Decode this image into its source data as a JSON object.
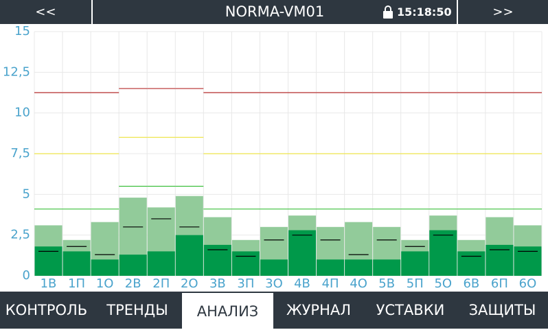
{
  "header": {
    "back": "<<",
    "title": "NORMA-VM01",
    "time": "15:18:50",
    "forward": ">>"
  },
  "tabs": [
    "КОНТРОЛЬ",
    "ТРЕНДЫ",
    "АНАЛИЗ",
    "ЖУРНАЛ",
    "УСТАВКИ",
    "ЗАЩИТЫ"
  ],
  "chart_data": {
    "type": "bar",
    "categories": [
      "1В",
      "1П",
      "1О",
      "2В",
      "2П",
      "2О",
      "3В",
      "3П",
      "3О",
      "4В",
      "4П",
      "4О",
      "5В",
      "5П",
      "5О",
      "6В",
      "6П",
      "6О"
    ],
    "series": [
      {
        "color": "#92cb9a",
        "values": [
          3.1,
          2.2,
          3.3,
          4.8,
          4.2,
          4.9,
          3.6,
          2.2,
          3.0,
          3.7,
          3.0,
          3.3,
          3.0,
          2.2,
          3.7,
          2.2,
          3.6,
          3.1
        ]
      },
      {
        "color": "#00994a",
        "values": [
          1.8,
          1.5,
          1.0,
          1.3,
          1.5,
          2.5,
          1.9,
          1.5,
          1.0,
          2.8,
          1.0,
          1.0,
          1.0,
          1.5,
          2.8,
          1.5,
          1.9,
          1.8
        ]
      }
    ],
    "lines": [
      {
        "color": "#000000",
        "values": [
          1.5,
          1.8,
          1.3,
          3.0,
          3.5,
          3.0,
          1.6,
          1.2,
          2.2,
          2.5,
          2.2,
          1.3,
          2.2,
          1.8,
          2.5,
          1.2,
          1.6,
          1.5
        ]
      },
      {
        "color": "#b52a2a",
        "values": [
          11.25,
          11.25,
          11.25,
          11.5,
          11.5,
          11.5,
          11.25,
          11.25,
          11.25,
          11.25,
          11.25,
          11.25,
          11.25,
          11.25,
          11.25,
          11.25,
          11.25,
          11.25
        ]
      },
      {
        "color": "#eee44a",
        "values": [
          7.5,
          7.5,
          7.5,
          8.5,
          8.5,
          8.5,
          7.5,
          7.5,
          7.5,
          7.5,
          7.5,
          7.5,
          7.5,
          7.5,
          7.5,
          7.5,
          7.5,
          7.5
        ]
      },
      {
        "color": "#3cbf3c",
        "values": [
          4.1,
          4.1,
          4.1,
          5.5,
          5.5,
          5.5,
          4.1,
          4.1,
          4.1,
          4.1,
          4.1,
          4.1,
          4.1,
          4.1,
          4.1,
          4.1,
          4.1,
          4.1
        ]
      }
    ],
    "ylim": [
      0,
      15
    ],
    "yticks": [
      0,
      {
        "value": 2.5,
        "label": "2,5"
      },
      5,
      {
        "value": 7.5,
        "label": "7,5"
      },
      10,
      {
        "value": 12.5,
        "label": "12,5"
      },
      15
    ],
    "grid": true
  }
}
